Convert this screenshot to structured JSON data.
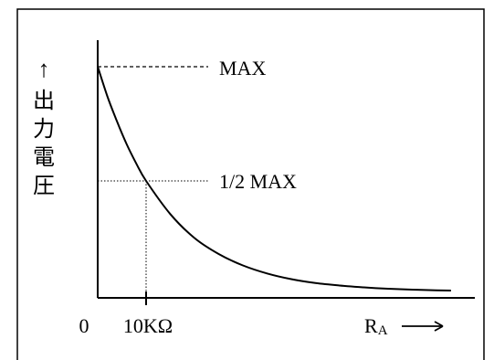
{
  "chart_data": {
    "type": "line",
    "title": "",
    "ylabel": "出力電圧",
    "xlabel_main": "R",
    "xlabel_sub": "A",
    "annotations": {
      "max_label": "MAX",
      "half_max_label": "1/2 MAX"
    },
    "x_tick_labels": {
      "origin": "0",
      "half_point": "10KΩ"
    },
    "axis_arrows": {
      "y": "↑",
      "x": "⟶"
    },
    "curve": {
      "description_x": "resistance R_A (kΩ)",
      "x": [
        0,
        2,
        4,
        6,
        8,
        10,
        15,
        20,
        25,
        30,
        35,
        40,
        45,
        50,
        55,
        60,
        65,
        70,
        73
      ],
      "y_fraction_of_max": [
        1.0,
        0.87,
        0.76,
        0.66,
        0.575,
        0.5,
        0.355,
        0.25,
        0.18,
        0.13,
        0.095,
        0.07,
        0.053,
        0.042,
        0.034,
        0.028,
        0.024,
        0.021,
        0.02
      ]
    },
    "grid": false,
    "legend": "none"
  }
}
